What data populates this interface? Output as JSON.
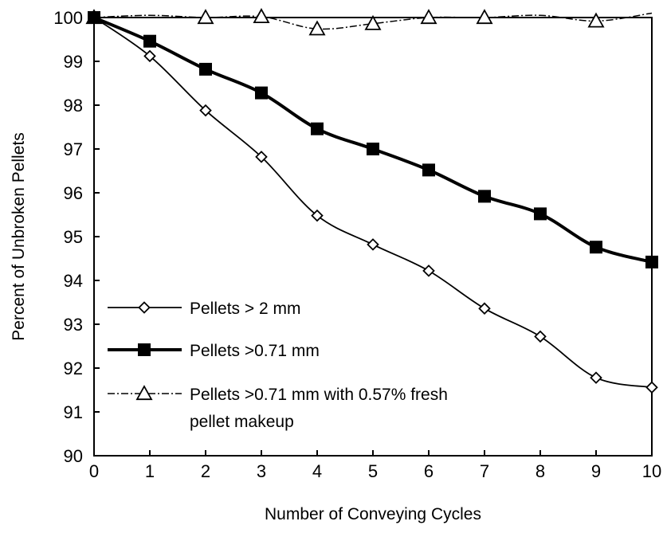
{
  "chart_data": {
    "type": "line",
    "title": "",
    "xlabel": "Number of Conveying Cycles",
    "ylabel": "Percent of Unbroken Pellets",
    "xlim": [
      0,
      10
    ],
    "ylim": [
      90,
      100
    ],
    "x_ticks": [
      0,
      1,
      2,
      3,
      4,
      5,
      6,
      7,
      8,
      9,
      10
    ],
    "y_ticks": [
      90,
      91,
      92,
      93,
      94,
      95,
      96,
      97,
      98,
      99,
      100
    ],
    "grid": false,
    "legend_position": "bottom-left",
    "x": [
      0,
      1,
      2,
      3,
      4,
      5,
      6,
      7,
      8,
      9,
      10
    ],
    "series": [
      {
        "name": "Pellets > 2 mm",
        "marker": "diamond-open",
        "line_style": "thin-solid",
        "values": [
          100,
          99.12,
          97.88,
          96.82,
          95.48,
          94.82,
          94.22,
          93.36,
          92.72,
          91.78,
          91.56
        ]
      },
      {
        "name": "Pellets >0.71 mm",
        "marker": "square-filled",
        "line_style": "thick-solid",
        "values": [
          100,
          99.46,
          98.82,
          98.28,
          97.46,
          97.0,
          96.52,
          95.92,
          95.52,
          94.76,
          94.42
        ]
      },
      {
        "name": "Pellets >0.71 mm with 0.57% fresh pellet makeup",
        "name_lines": [
          "Pellets >0.71 mm with 0.57% fresh",
          "pellet makeup"
        ],
        "marker": "triangle-open",
        "line_style": "dash-dot",
        "values": [
          100,
          100.05,
          100.0,
          100.02,
          99.74,
          99.86,
          100.0,
          100.0,
          100.05,
          99.92,
          100.1
        ]
      }
    ]
  }
}
